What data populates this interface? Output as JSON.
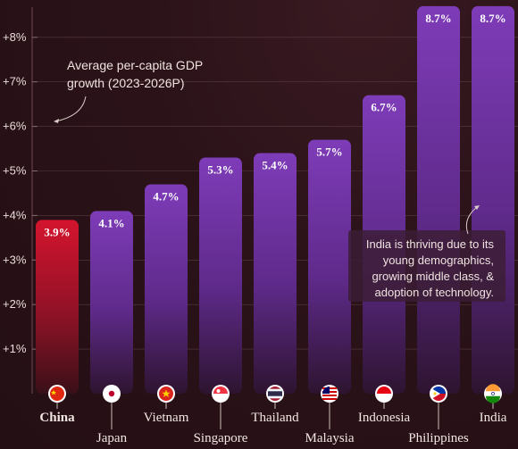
{
  "chart_data": {
    "type": "bar",
    "title": "Average per-capita GDP growth (2023-2026P)",
    "title_lines": [
      "Average per-capita GDP",
      "growth (2023-2026P)"
    ],
    "categories": [
      "China",
      "Japan",
      "Vietnam",
      "Singapore",
      "Thailand",
      "Malaysia",
      "Indonesia",
      "Philippines",
      "India"
    ],
    "values": [
      3.9,
      4.1,
      4.7,
      5.3,
      5.4,
      5.7,
      6.7,
      8.7,
      8.7
    ],
    "value_labels": [
      "3.9%",
      "4.1%",
      "4.7%",
      "5.3%",
      "5.4%",
      "5.7%",
      "6.7%",
      "8.7%",
      "8.7%"
    ],
    "highlight_category": "China",
    "y_ticks": [
      1,
      2,
      3,
      4,
      5,
      6,
      7,
      8
    ],
    "y_tick_labels": [
      "+1%",
      "+2%",
      "+3%",
      "+4%",
      "+5%",
      "+6%",
      "+7%",
      "+8%"
    ],
    "ylim": [
      0,
      8.7
    ],
    "grid": true,
    "annotation": [
      "India is thriving due to its",
      "young demographics,",
      "growing middle class, &",
      "adoption of technology."
    ],
    "colors": {
      "highlight": "#c8102e",
      "bars": "#7a3bb0",
      "background": "#2a1218"
    },
    "flag_icons": [
      "china-flag-icon",
      "japan-flag-icon",
      "vietnam-flag-icon",
      "singapore-flag-icon",
      "thailand-flag-icon",
      "malaysia-flag-icon",
      "indonesia-flag-icon",
      "philippines-flag-icon",
      "india-flag-icon"
    ]
  }
}
